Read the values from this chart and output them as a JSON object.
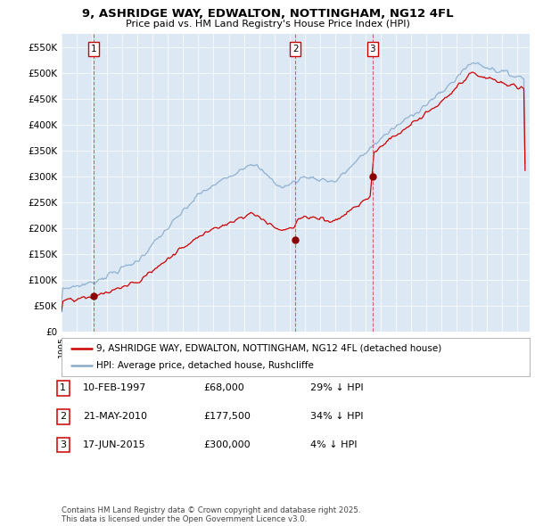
{
  "title": "9, ASHRIDGE WAY, EDWALTON, NOTTINGHAM, NG12 4FL",
  "subtitle": "Price paid vs. HM Land Registry's House Price Index (HPI)",
  "ylim": [
    0,
    575000
  ],
  "yticks": [
    0,
    50000,
    100000,
    150000,
    200000,
    250000,
    300000,
    350000,
    400000,
    450000,
    500000,
    550000
  ],
  "ytick_labels": [
    "£0",
    "£50K",
    "£100K",
    "£150K",
    "£200K",
    "£250K",
    "£300K",
    "£350K",
    "£400K",
    "£450K",
    "£500K",
    "£550K"
  ],
  "xlim_start": 1995.0,
  "xlim_end": 2025.8,
  "plot_bg_color": "#dce9f5",
  "red_line_color": "#cc0000",
  "blue_line_color": "#88aacc",
  "sale_marker_color": "#880000",
  "dashed_line_color": "#cc5555",
  "sales": [
    {
      "label": "1",
      "year": 1997.12,
      "price": 68000,
      "date_str": "10-FEB-1997",
      "price_str": "£68,000",
      "hpi_str": "29% ↓ HPI"
    },
    {
      "label": "2",
      "year": 2010.38,
      "price": 177500,
      "date_str": "21-MAY-2010",
      "price_str": "£177,500",
      "hpi_str": "34% ↓ HPI"
    },
    {
      "label": "3",
      "year": 2015.46,
      "price": 300000,
      "date_str": "17-JUN-2015",
      "price_str": "£300,000",
      "hpi_str": "4% ↓ HPI"
    }
  ],
  "legend_label_red": "9, ASHRIDGE WAY, EDWALTON, NOTTINGHAM, NG12 4FL (detached house)",
  "legend_label_blue": "HPI: Average price, detached house, Rushcliffe",
  "footer": "Contains HM Land Registry data © Crown copyright and database right 2025.\nThis data is licensed under the Open Government Licence v3.0."
}
